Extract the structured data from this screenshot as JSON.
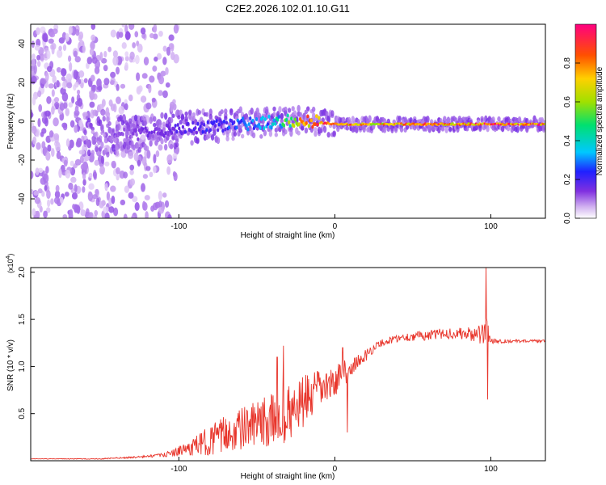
{
  "title": "C2E2.2026.102.01.10.G11",
  "chart_data": [
    {
      "type": "heatmap",
      "title": "C2E2.2026.102.01.10.G11",
      "xlabel": "Height of straight line (km)",
      "ylabel": "Frequency (Hz)",
      "xlim": [
        -195,
        135
      ],
      "ylim": [
        -50,
        50
      ],
      "xticks": [
        -100,
        0,
        100
      ],
      "yticks": [
        40,
        20,
        0,
        -20,
        -40
      ],
      "ridge": {
        "x": [
          -150,
          -130,
          -110,
          -90,
          -70,
          -50,
          -35,
          -25,
          -15,
          -5,
          0,
          20,
          50,
          90,
          135
        ],
        "freq": [
          -8,
          -7,
          -5,
          -3,
          -2,
          -1,
          0,
          0.5,
          0,
          -1,
          -1.5,
          -1.5,
          -1.5,
          -1.5,
          -1.5
        ],
        "amplitude": [
          0.15,
          0.2,
          0.25,
          0.3,
          0.35,
          0.4,
          0.5,
          0.75,
          0.9,
          0.95,
          0.98,
          0.8,
          0.85,
          0.9,
          0.95
        ]
      },
      "colorbar": {
        "label": "Normalized spectral amplitude",
        "range": [
          0,
          1
        ],
        "ticks": [
          0.0,
          0.2,
          0.4,
          0.6,
          0.8
        ],
        "tick_labels": [
          "0.0",
          "0.2",
          "0.4",
          "0.6",
          "0.8"
        ],
        "colormap": [
          "#ffffff",
          "#c8a0f0",
          "#7a2de0",
          "#3020ff",
          "#00c8ff",
          "#00e070",
          "#a0e000",
          "#ffd000",
          "#ff5000",
          "#ff0080"
        ]
      }
    },
    {
      "type": "line",
      "xlabel": "Height of straight line (km)",
      "ylabel": "SNR (10 * v/v)",
      "y_multiplier": "(x10",
      "y_multiplier_exp": "4",
      "xlim": [
        -195,
        135
      ],
      "ylim": [
        0,
        2.05
      ],
      "xticks": [
        -100,
        0,
        100
      ],
      "yticks": [
        0.5,
        1.0,
        1.5,
        2.0
      ],
      "ytick_labels": [
        "0.5",
        "1.0",
        "1.5",
        "2.0"
      ],
      "series": [
        {
          "name": "SNR",
          "color": "#e8352b",
          "x": [
            -195,
            -150,
            -125,
            -110,
            -100,
            -90,
            -80,
            -70,
            -60,
            -50,
            -40,
            -30,
            -20,
            -15,
            -10,
            -5,
            0,
            5,
            10,
            15,
            20,
            25,
            30,
            40,
            50,
            60,
            70,
            80,
            90,
            95,
            98,
            100,
            105,
            110,
            120,
            135
          ],
          "y": [
            0.02,
            0.02,
            0.04,
            0.06,
            0.1,
            0.15,
            0.22,
            0.28,
            0.34,
            0.38,
            0.42,
            0.5,
            0.62,
            0.68,
            0.76,
            0.78,
            0.84,
            0.92,
            0.98,
            1.05,
            1.12,
            1.2,
            1.25,
            1.3,
            1.32,
            1.33,
            1.35,
            1.35,
            1.34,
            1.33,
            1.35,
            1.28,
            1.27,
            1.27,
            1.27,
            1.27
          ],
          "noise": [
            0.002,
            0.005,
            0.01,
            0.02,
            0.05,
            0.1,
            0.16,
            0.2,
            0.22,
            0.25,
            0.3,
            0.3,
            0.28,
            0.26,
            0.2,
            0.18,
            0.15,
            0.15,
            0.1,
            0.08,
            0.06,
            0.05,
            0.04,
            0.04,
            0.05,
            0.05,
            0.06,
            0.06,
            0.08,
            0.12,
            0.3,
            0.04,
            0.02,
            0.02,
            0.015,
            0.015
          ],
          "spikes": [
            {
              "x": -37,
              "y": 1.1
            },
            {
              "x": -33,
              "y": 1.22
            },
            {
              "x": -28,
              "y": 0.25
            },
            {
              "x": 5,
              "y": 1.2
            },
            {
              "x": 8,
              "y": 0.3
            },
            {
              "x": 92,
              "y": 1.4
            },
            {
              "x": 97,
              "y": 2.05
            },
            {
              "x": 98,
              "y": 0.65
            }
          ]
        }
      ]
    }
  ]
}
